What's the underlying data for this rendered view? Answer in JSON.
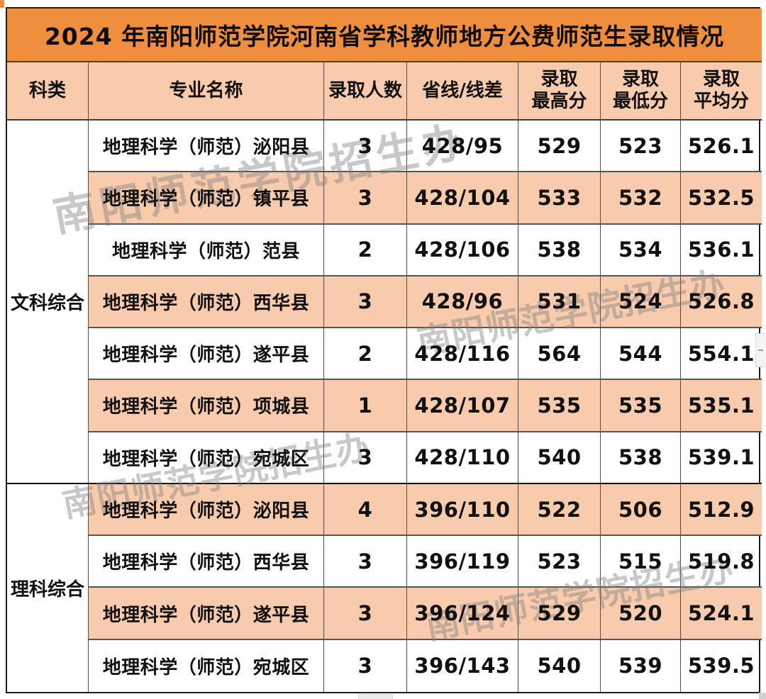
{
  "page": {
    "title": "2024 年南阳师范学院河南省学科教师地方公费师范生录取情况",
    "watermark": "南阳师范学院招生办"
  },
  "colors": {
    "title_bg": "#EF8E3C",
    "stripe_bg": "#F8CBAD",
    "row_bg": "#FFFFFF",
    "text": "#111111",
    "watermark": "#7D7D7D"
  },
  "table": {
    "headers": [
      "科类",
      "专业名称",
      "录取人数",
      "省线/线差",
      "录取\n最高分",
      "录取\n最低分",
      "录取\n平均分"
    ],
    "categories": [
      {
        "label": "文科综合",
        "row_count": 7
      },
      {
        "label": "理科综合",
        "row_count": 4
      }
    ],
    "rows": [
      {
        "category": "文科综合",
        "major": "地理科学（师范）泌阳县",
        "count": "3",
        "line": "428/95",
        "max": "529",
        "min": "523",
        "avg": "526.1"
      },
      {
        "category": "文科综合",
        "major": "地理科学（师范）镇平县",
        "count": "3",
        "line": "428/104",
        "max": "533",
        "min": "532",
        "avg": "532.5"
      },
      {
        "category": "文科综合",
        "major": "地理科学（师范）范县",
        "count": "2",
        "line": "428/106",
        "max": "538",
        "min": "534",
        "avg": "536.1"
      },
      {
        "category": "文科综合",
        "major": "地理科学（师范）西华县",
        "count": "3",
        "line": "428/96",
        "max": "531",
        "min": "524",
        "avg": "526.8"
      },
      {
        "category": "文科综合",
        "major": "地理科学（师范）遂平县",
        "count": "2",
        "line": "428/116",
        "max": "564",
        "min": "544",
        "avg": "554.1"
      },
      {
        "category": "文科综合",
        "major": "地理科学（师范）项城县",
        "count": "1",
        "line": "428/107",
        "max": "535",
        "min": "535",
        "avg": "535.1"
      },
      {
        "category": "文科综合",
        "major": "地理科学（师范）宛城区",
        "count": "3",
        "line": "428/110",
        "max": "540",
        "min": "538",
        "avg": "539.1"
      },
      {
        "category": "理科综合",
        "major": "地理科学（师范）泌阳县",
        "count": "4",
        "line": "396/110",
        "max": "522",
        "min": "506",
        "avg": "512.9"
      },
      {
        "category": "理科综合",
        "major": "地理科学（师范）西华县",
        "count": "3",
        "line": "396/119",
        "max": "523",
        "min": "515",
        "avg": "519.8"
      },
      {
        "category": "理科综合",
        "major": "地理科学（师范）遂平县",
        "count": "3",
        "line": "396/124",
        "max": "529",
        "min": "520",
        "avg": "524.1"
      },
      {
        "category": "理科综合",
        "major": "地理科学（师范）宛城区",
        "count": "3",
        "line": "396/143",
        "max": "540",
        "min": "539",
        "avg": "539.5"
      }
    ]
  }
}
